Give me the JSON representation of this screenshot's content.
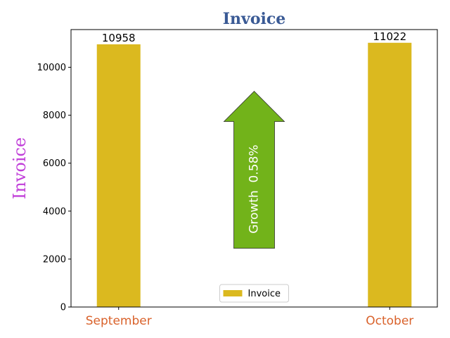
{
  "chart_data": {
    "type": "bar",
    "title": "Invoice",
    "xlabel": "",
    "ylabel": "Invoice",
    "categories": [
      "September",
      "October"
    ],
    "series": [
      {
        "name": "Invoice",
        "values": [
          10958,
          11022
        ]
      }
    ],
    "data_labels": [
      "10958",
      "11022"
    ],
    "ylim": [
      0,
      11573
    ],
    "yticks": [
      0,
      2000,
      4000,
      6000,
      8000,
      10000
    ],
    "grid": false,
    "legend": {
      "position": "bottom-center",
      "entries": [
        "Invoice"
      ]
    },
    "annotation": {
      "type": "up-arrow",
      "text": "Growth  0.58%",
      "y_from": 2450,
      "y_to": 9000
    },
    "colors": {
      "bar": "#DBB91F",
      "title": "#3A5A95",
      "ylabel": "#C13FD9",
      "xtick": "#D9622B",
      "arrow": "#72B31A"
    }
  }
}
